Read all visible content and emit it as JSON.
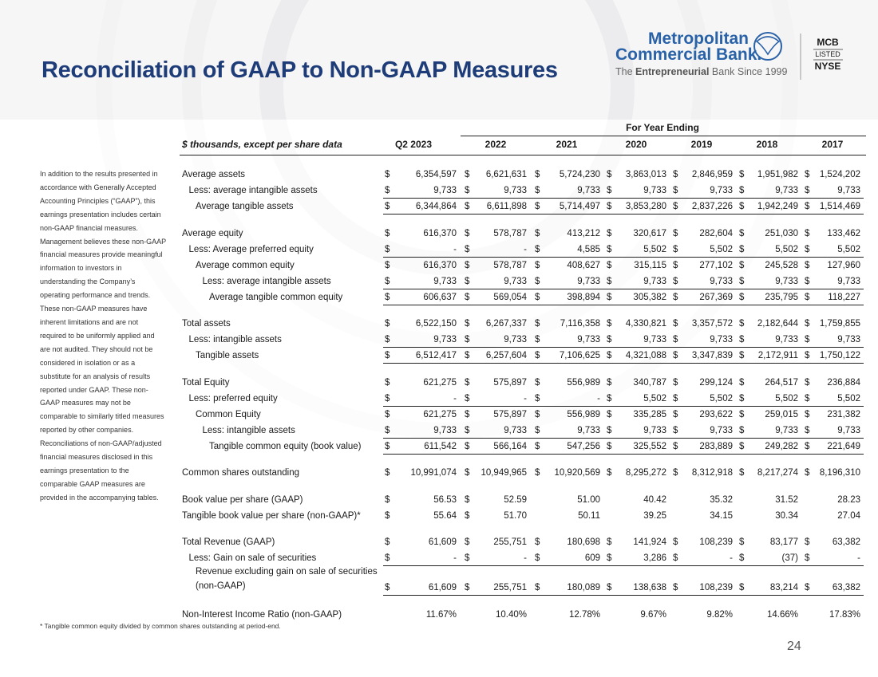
{
  "header": {
    "title": "Reconciliation of GAAP to Non-GAAP Measures"
  },
  "logo": {
    "line1": "Metropolitan",
    "line2": "Commercial Bank.",
    "tagline": {
      "pre": "The",
      "bold": "Entrepreneurial",
      "post": "Bank Since 1999"
    },
    "badge": {
      "ticker": "MCB",
      "status": "LISTED",
      "exchange": "NYSE"
    }
  },
  "sidebar": {
    "text": "In addition to the results presented in accordance with Generally Accepted Accounting Principles (“GAAP”), this earnings presentation includes certain non-GAAP financial measures. Management believes these non-GAAP financial measures provide meaningful information to investors in understanding the Company’s operating performance and trends. These non-GAAP measures have inherent limitations and are not required to be uniformly applied and are not audited. They should not be considered in isolation or as a substitute for an analysis of results reported under GAAP. These non-GAAP measures may not be comparable to similarly titled measures reported by other companies. Reconciliations of non-GAAP/adjusted financial measures disclosed in this earnings presentation to the comparable GAAP measures are provided in the accompanying tables."
  },
  "table": {
    "group_header": "For Year Ending",
    "unit_label": "$ thousands, except per share data",
    "currency_symbol": "$",
    "columns": [
      "Q2 2023",
      "2022",
      "2021",
      "2020",
      "2019",
      "2018",
      "2017"
    ],
    "groups": [
      [
        {
          "label": "Average assets",
          "indent": 0,
          "dollar": true,
          "values": [
            "6,354,597",
            "6,621,631",
            "5,724,230",
            "3,863,013",
            "2,846,959",
            "1,951,982",
            "1,524,202"
          ]
        },
        {
          "label": "Less: average intangible assets",
          "indent": 1,
          "dollar": true,
          "underline": true,
          "values": [
            "9,733",
            "9,733",
            "9,733",
            "9,733",
            "9,733",
            "9,733",
            "9,733"
          ]
        },
        {
          "label": "Average tangible assets",
          "indent": 2,
          "dollar": true,
          "underline": true,
          "values": [
            "6,344,864",
            "6,611,898",
            "5,714,497",
            "3,853,280",
            "2,837,226",
            "1,942,249",
            "1,514,469"
          ]
        }
      ],
      [
        {
          "label": "Average equity",
          "indent": 0,
          "dollar": true,
          "values": [
            "616,370",
            "578,787",
            "413,212",
            "320,617",
            "282,604",
            "251,030",
            "133,462"
          ]
        },
        {
          "label": "Less: Average preferred equity",
          "indent": 1,
          "dollar": true,
          "underline": true,
          "values": [
            "-",
            "-",
            "4,585",
            "5,502",
            "5,502",
            "5,502",
            "5,502"
          ]
        },
        {
          "label": "Average common equity",
          "indent": 2,
          "dollar": true,
          "values": [
            "616,370",
            "578,787",
            "408,627",
            "315,115",
            "277,102",
            "245,528",
            "127,960"
          ]
        },
        {
          "label": "Less: average intangible assets",
          "indent": 3,
          "dollar": true,
          "underline": true,
          "values": [
            "9,733",
            "9,733",
            "9,733",
            "9,733",
            "9,733",
            "9,733",
            "9,733"
          ]
        },
        {
          "label": "Average tangible common equity",
          "indent": 4,
          "dollar": true,
          "underline": true,
          "values": [
            "606,637",
            "569,054",
            "398,894",
            "305,382",
            "267,369",
            "235,795",
            "118,227"
          ]
        }
      ],
      [
        {
          "label": "Total assets",
          "indent": 0,
          "dollar": true,
          "values": [
            "6,522,150",
            "6,267,337",
            "7,116,358",
            "4,330,821",
            "3,357,572",
            "2,182,644",
            "1,759,855"
          ]
        },
        {
          "label": "Less: intangible assets",
          "indent": 1,
          "dollar": true,
          "underline": true,
          "values": [
            "9,733",
            "9,733",
            "9,733",
            "9,733",
            "9,733",
            "9,733",
            "9,733"
          ]
        },
        {
          "label": "Tangible assets",
          "indent": 2,
          "dollar": true,
          "underline": true,
          "values": [
            "6,512,417",
            "6,257,604",
            "7,106,625",
            "4,321,088",
            "3,347,839",
            "2,172,911",
            "1,750,122"
          ]
        }
      ],
      [
        {
          "label": "Total Equity",
          "indent": 0,
          "dollar": true,
          "values": [
            "621,275",
            "575,897",
            "556,989",
            "340,787",
            "299,124",
            "264,517",
            "236,884"
          ]
        },
        {
          "label": "Less: preferred equity",
          "indent": 1,
          "dollar": true,
          "underline": true,
          "values": [
            "-",
            "-",
            "-",
            "5,502",
            "5,502",
            "5,502",
            "5,502"
          ]
        },
        {
          "label": "Common Equity",
          "indent": 2,
          "dollar": true,
          "values": [
            "621,275",
            "575,897",
            "556,989",
            "335,285",
            "293,622",
            "259,015",
            "231,382"
          ]
        },
        {
          "label": "Less: intangible assets",
          "indent": 3,
          "dollar": true,
          "underline": true,
          "values": [
            "9,733",
            "9,733",
            "9,733",
            "9,733",
            "9,733",
            "9,733",
            "9,733"
          ]
        },
        {
          "label": "Tangible common equity (book value)",
          "indent": 4,
          "dollar": true,
          "underline": true,
          "values": [
            "611,542",
            "566,164",
            "547,256",
            "325,552",
            "283,889",
            "249,282",
            "221,649"
          ]
        }
      ],
      [
        {
          "label": "Common shares outstanding",
          "indent": 0,
          "dollar": true,
          "values": [
            "10,991,074",
            "10,949,965",
            "10,920,569",
            "8,295,272",
            "8,312,918",
            "8,217,274",
            "8,196,310"
          ]
        }
      ],
      [
        {
          "label": "Book value per share (GAAP)",
          "indent": 0,
          "dollar": [
            true,
            true,
            false,
            false,
            false,
            false,
            false
          ],
          "values": [
            "56.53",
            "52.59",
            "51.00",
            "40.42",
            "35.32",
            "31.52",
            "28.23"
          ]
        },
        {
          "label": "Tangible book value per share (non-GAAP)*",
          "indent": 0,
          "dollar": [
            true,
            true,
            false,
            false,
            false,
            false,
            false
          ],
          "values": [
            "55.64",
            "51.70",
            "50.11",
            "39.25",
            "34.15",
            "30.34",
            "27.04"
          ]
        }
      ],
      [
        {
          "label": "Total Revenue (GAAP)",
          "indent": 0,
          "dollar": true,
          "values": [
            "61,609",
            "255,751",
            "180,698",
            "141,924",
            "108,239",
            "83,177",
            "63,382"
          ]
        },
        {
          "label": "Less: Gain on sale of securities",
          "indent": 1,
          "dollar": true,
          "underline": true,
          "values": [
            "-",
            "-",
            "609",
            "3,286",
            "-",
            "(37)",
            "-"
          ]
        },
        {
          "label": [
            "Revenue excluding gain on sale of securities",
            "(non-GAAP)"
          ],
          "indent": 2,
          "dollar": true,
          "underline": true,
          "values": [
            "61,609",
            "255,751",
            "180,089",
            "138,638",
            "108,239",
            "83,214",
            "63,382"
          ]
        }
      ],
      [
        {
          "label": "Non-Interest Income Ratio (non-GAAP)",
          "indent": 0,
          "values": [
            "11.67%",
            "10.40%",
            "12.78%",
            "9.67%",
            "9.82%",
            "14.66%",
            "17.83%"
          ]
        }
      ]
    ]
  },
  "footnote": "* Tangible common equity divided by common shares outstanding at period-end.",
  "page_number": "24"
}
